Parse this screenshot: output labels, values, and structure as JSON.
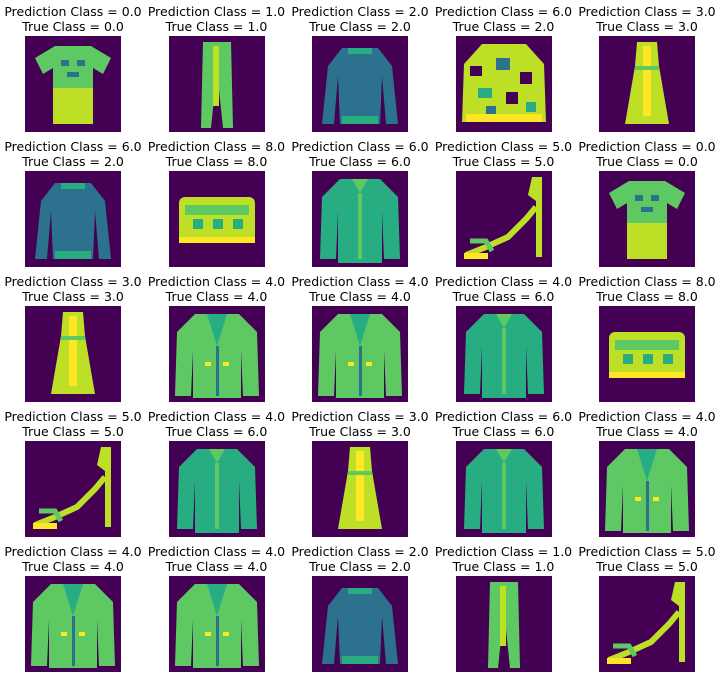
{
  "colors": {
    "background": "#440154",
    "dark": "#2c728e",
    "mid": "#27ad81",
    "light": "#5ec962",
    "bright": "#bddf26",
    "yellow": "#fde725"
  },
  "panels": [
    {
      "prediction": "Prediction Class = 0.0",
      "true": "True Class = 0.0",
      "item": "tshirt"
    },
    {
      "prediction": "Prediction Class = 1.0",
      "true": "True Class = 1.0",
      "item": "trouser"
    },
    {
      "prediction": "Prediction Class = 2.0",
      "true": "True Class = 2.0",
      "item": "pullover"
    },
    {
      "prediction": "Prediction Class = 6.0",
      "true": "True Class = 2.0",
      "item": "pullover-pattern"
    },
    {
      "prediction": "Prediction Class = 3.0",
      "true": "True Class = 3.0",
      "item": "dress"
    },
    {
      "prediction": "Prediction Class = 6.0",
      "true": "True Class = 2.0",
      "item": "pullover"
    },
    {
      "prediction": "Prediction Class = 8.0",
      "true": "True Class = 8.0",
      "item": "bag"
    },
    {
      "prediction": "Prediction Class = 6.0",
      "true": "True Class = 6.0",
      "item": "shirt"
    },
    {
      "prediction": "Prediction Class = 5.0",
      "true": "True Class = 5.0",
      "item": "sandal"
    },
    {
      "prediction": "Prediction Class = 0.0",
      "true": "True Class = 0.0",
      "item": "tshirt"
    },
    {
      "prediction": "Prediction Class = 3.0",
      "true": "True Class = 3.0",
      "item": "dress"
    },
    {
      "prediction": "Prediction Class = 4.0",
      "true": "True Class = 4.0",
      "item": "coat"
    },
    {
      "prediction": "Prediction Class = 4.0",
      "true": "True Class = 4.0",
      "item": "coat"
    },
    {
      "prediction": "Prediction Class = 4.0",
      "true": "True Class = 6.0",
      "item": "shirt"
    },
    {
      "prediction": "Prediction Class = 8.0",
      "true": "True Class = 8.0",
      "item": "bag"
    },
    {
      "prediction": "Prediction Class = 5.0",
      "true": "True Class = 5.0",
      "item": "sandal"
    },
    {
      "prediction": "Prediction Class = 4.0",
      "true": "True Class = 6.0",
      "item": "shirt"
    },
    {
      "prediction": "Prediction Class = 3.0",
      "true": "True Class = 3.0",
      "item": "dress"
    },
    {
      "prediction": "Prediction Class = 6.0",
      "true": "True Class = 6.0",
      "item": "shirt"
    },
    {
      "prediction": "Prediction Class = 4.0",
      "true": "True Class = 4.0",
      "item": "coat"
    },
    {
      "prediction": "Prediction Class = 4.0",
      "true": "True Class = 4.0",
      "item": "coat"
    },
    {
      "prediction": "Prediction Class = 4.0",
      "true": "True Class = 4.0",
      "item": "coat"
    },
    {
      "prediction": "Prediction Class = 2.0",
      "true": "True Class = 2.0",
      "item": "pullover"
    },
    {
      "prediction": "Prediction Class = 1.0",
      "true": "True Class = 1.0",
      "item": "trouser"
    },
    {
      "prediction": "Prediction Class = 5.0",
      "true": "True Class = 5.0",
      "item": "sandal"
    }
  ]
}
